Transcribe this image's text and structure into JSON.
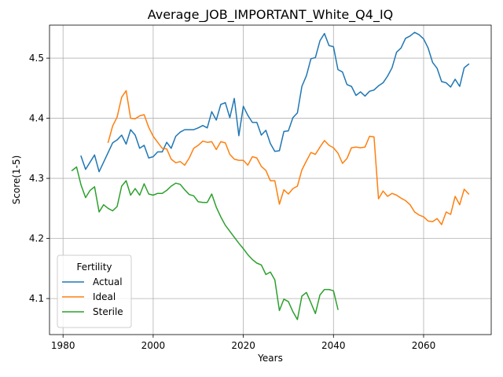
{
  "chart_data": {
    "type": "line",
    "title": "Average_JOB_IMPORTANT_White_Q4_IQ",
    "xlabel": "Years",
    "ylabel": "Score(1-5)",
    "xlim": [
      1977,
      2075
    ],
    "ylim": [
      4.04,
      4.555
    ],
    "xticks": [
      1980,
      2000,
      2020,
      2040,
      2060
    ],
    "yticks": [
      4.1,
      4.2,
      4.3,
      4.4,
      4.5
    ],
    "grid": true,
    "legend": {
      "title": "Fertility",
      "placement": "lower-left"
    },
    "series": [
      {
        "name": "Actual",
        "color": "#1f77b4",
        "points": [
          [
            1984,
            4.337
          ],
          [
            1985,
            4.315
          ],
          [
            1987,
            4.339
          ],
          [
            1988,
            4.311
          ],
          [
            1990,
            4.343
          ],
          [
            1991,
            4.359
          ],
          [
            1992,
            4.364
          ],
          [
            1993,
            4.372
          ],
          [
            1994,
            4.357
          ],
          [
            1995,
            4.381
          ],
          [
            1996,
            4.372
          ],
          [
            1997,
            4.35
          ],
          [
            1998,
            4.355
          ],
          [
            1999,
            4.334
          ],
          [
            2000,
            4.336
          ],
          [
            2001,
            4.344
          ],
          [
            2002,
            4.344
          ],
          [
            2003,
            4.36
          ],
          [
            2004,
            4.35
          ],
          [
            2005,
            4.37
          ],
          [
            2006,
            4.377
          ],
          [
            2007,
            4.381
          ],
          [
            2009,
            4.381
          ],
          [
            2010,
            4.384
          ],
          [
            2011,
            4.388
          ],
          [
            2012,
            4.384
          ],
          [
            2013,
            4.411
          ],
          [
            2014,
            4.397
          ],
          [
            2015,
            4.423
          ],
          [
            2016,
            4.426
          ],
          [
            2017,
            4.401
          ],
          [
            2018,
            4.433
          ],
          [
            2019,
            4.371
          ],
          [
            2020,
            4.42
          ],
          [
            2021,
            4.405
          ],
          [
            2022,
            4.393
          ],
          [
            2023,
            4.393
          ],
          [
            2024,
            4.372
          ],
          [
            2025,
            4.38
          ],
          [
            2026,
            4.358
          ],
          [
            2027,
            4.345
          ],
          [
            2028,
            4.346
          ],
          [
            2029,
            4.378
          ],
          [
            2030,
            4.379
          ],
          [
            2031,
            4.401
          ],
          [
            2032,
            4.409
          ],
          [
            2033,
            4.453
          ],
          [
            2034,
            4.471
          ],
          [
            2035,
            4.499
          ],
          [
            2036,
            4.501
          ],
          [
            2037,
            4.529
          ],
          [
            2038,
            4.541
          ],
          [
            2039,
            4.521
          ],
          [
            2040,
            4.519
          ],
          [
            2041,
            4.481
          ],
          [
            2042,
            4.477
          ],
          [
            2043,
            4.456
          ],
          [
            2044,
            4.453
          ],
          [
            2045,
            4.438
          ],
          [
            2046,
            4.444
          ],
          [
            2047,
            4.437
          ],
          [
            2048,
            4.445
          ],
          [
            2049,
            4.447
          ],
          [
            2050,
            4.454
          ],
          [
            2051,
            4.459
          ],
          [
            2052,
            4.47
          ],
          [
            2053,
            4.484
          ],
          [
            2054,
            4.51
          ],
          [
            2055,
            4.517
          ],
          [
            2056,
            4.533
          ],
          [
            2057,
            4.537
          ],
          [
            2058,
            4.543
          ],
          [
            2059,
            4.539
          ],
          [
            2060,
            4.532
          ],
          [
            2061,
            4.517
          ],
          [
            2062,
            4.493
          ],
          [
            2063,
            4.483
          ],
          [
            2064,
            4.461
          ],
          [
            2065,
            4.459
          ],
          [
            2066,
            4.452
          ],
          [
            2067,
            4.465
          ],
          [
            2068,
            4.453
          ],
          [
            2069,
            4.484
          ],
          [
            2070,
            4.49
          ]
        ]
      },
      {
        "name": "Ideal",
        "color": "#ff7f0e",
        "points": [
          [
            1990,
            4.36
          ],
          [
            1991,
            4.387
          ],
          [
            1992,
            4.402
          ],
          [
            1993,
            4.435
          ],
          [
            1994,
            4.446
          ],
          [
            1995,
            4.4
          ],
          [
            1996,
            4.399
          ],
          [
            1997,
            4.404
          ],
          [
            1998,
            4.406
          ],
          [
            1999,
            4.385
          ],
          [
            2000,
            4.37
          ],
          [
            2001,
            4.36
          ],
          [
            2002,
            4.35
          ],
          [
            2003,
            4.349
          ],
          [
            2004,
            4.332
          ],
          [
            2005,
            4.326
          ],
          [
            2006,
            4.328
          ],
          [
            2007,
            4.322
          ],
          [
            2008,
            4.334
          ],
          [
            2009,
            4.35
          ],
          [
            2010,
            4.355
          ],
          [
            2011,
            4.362
          ],
          [
            2012,
            4.36
          ],
          [
            2013,
            4.361
          ],
          [
            2014,
            4.348
          ],
          [
            2015,
            4.361
          ],
          [
            2016,
            4.359
          ],
          [
            2017,
            4.34
          ],
          [
            2018,
            4.332
          ],
          [
            2019,
            4.33
          ],
          [
            2020,
            4.33
          ],
          [
            2021,
            4.322
          ],
          [
            2022,
            4.336
          ],
          [
            2023,
            4.334
          ],
          [
            2024,
            4.32
          ],
          [
            2025,
            4.313
          ],
          [
            2026,
            4.296
          ],
          [
            2027,
            4.296
          ],
          [
            2028,
            4.257
          ],
          [
            2029,
            4.281
          ],
          [
            2030,
            4.274
          ],
          [
            2031,
            4.283
          ],
          [
            2032,
            4.287
          ],
          [
            2033,
            4.314
          ],
          [
            2034,
            4.329
          ],
          [
            2035,
            4.343
          ],
          [
            2036,
            4.34
          ],
          [
            2037,
            4.352
          ],
          [
            2038,
            4.363
          ],
          [
            2039,
            4.355
          ],
          [
            2040,
            4.351
          ],
          [
            2041,
            4.342
          ],
          [
            2042,
            4.325
          ],
          [
            2043,
            4.333
          ],
          [
            2044,
            4.351
          ],
          [
            2045,
            4.352
          ],
          [
            2046,
            4.351
          ],
          [
            2047,
            4.352
          ],
          [
            2048,
            4.37
          ],
          [
            2049,
            4.369
          ],
          [
            2050,
            4.266
          ],
          [
            2051,
            4.279
          ],
          [
            2052,
            4.27
          ],
          [
            2053,
            4.275
          ],
          [
            2054,
            4.272
          ],
          [
            2055,
            4.267
          ],
          [
            2056,
            4.263
          ],
          [
            2057,
            4.256
          ],
          [
            2058,
            4.244
          ],
          [
            2059,
            4.239
          ],
          [
            2060,
            4.236
          ],
          [
            2061,
            4.229
          ],
          [
            2062,
            4.228
          ],
          [
            2063,
            4.233
          ],
          [
            2064,
            4.223
          ],
          [
            2065,
            4.244
          ],
          [
            2066,
            4.24
          ],
          [
            2067,
            4.27
          ],
          [
            2068,
            4.256
          ],
          [
            2069,
            4.282
          ],
          [
            2070,
            4.274
          ]
        ]
      },
      {
        "name": "Sterile",
        "color": "#2ca02c",
        "points": [
          [
            1982,
            4.313
          ],
          [
            1983,
            4.319
          ],
          [
            1984,
            4.289
          ],
          [
            1985,
            4.268
          ],
          [
            1986,
            4.28
          ],
          [
            1987,
            4.286
          ],
          [
            1988,
            4.244
          ],
          [
            1989,
            4.256
          ],
          [
            1990,
            4.25
          ],
          [
            1991,
            4.246
          ],
          [
            1992,
            4.253
          ],
          [
            1993,
            4.287
          ],
          [
            1994,
            4.296
          ],
          [
            1995,
            4.272
          ],
          [
            1996,
            4.283
          ],
          [
            1997,
            4.272
          ],
          [
            1998,
            4.291
          ],
          [
            1999,
            4.274
          ],
          [
            2000,
            4.272
          ],
          [
            2001,
            4.275
          ],
          [
            2002,
            4.275
          ],
          [
            2003,
            4.28
          ],
          [
            2004,
            4.287
          ],
          [
            2005,
            4.292
          ],
          [
            2006,
            4.29
          ],
          [
            2007,
            4.281
          ],
          [
            2008,
            4.273
          ],
          [
            2009,
            4.271
          ],
          [
            2010,
            4.261
          ],
          [
            2011,
            4.26
          ],
          [
            2012,
            4.26
          ],
          [
            2013,
            4.274
          ],
          [
            2014,
            4.252
          ],
          [
            2015,
            4.236
          ],
          [
            2016,
            4.222
          ],
          [
            2017,
            4.212
          ],
          [
            2018,
            4.202
          ],
          [
            2019,
            4.192
          ],
          [
            2020,
            4.183
          ],
          [
            2021,
            4.173
          ],
          [
            2022,
            4.165
          ],
          [
            2023,
            4.159
          ],
          [
            2024,
            4.156
          ],
          [
            2025,
            4.14
          ],
          [
            2026,
            4.144
          ],
          [
            2027,
            4.131
          ],
          [
            2028,
            4.08
          ],
          [
            2029,
            4.099
          ],
          [
            2030,
            4.095
          ],
          [
            2031,
            4.078
          ],
          [
            2032,
            4.065
          ],
          [
            2033,
            4.104
          ],
          [
            2034,
            4.11
          ],
          [
            2035,
            4.093
          ],
          [
            2036,
            4.075
          ],
          [
            2037,
            4.106
          ],
          [
            2038,
            4.115
          ],
          [
            2039,
            4.115
          ],
          [
            2040,
            4.113
          ],
          [
            2041,
            4.082
          ]
        ]
      }
    ]
  }
}
